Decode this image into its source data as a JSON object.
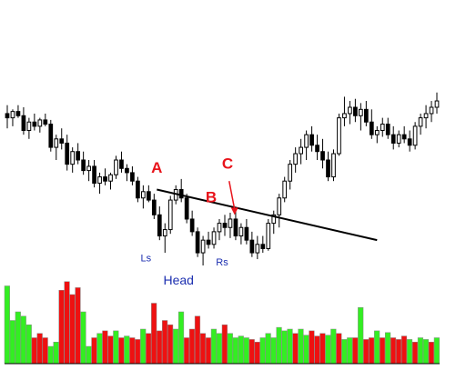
{
  "chart_data": {
    "type": "candlestick",
    "title": "",
    "xlabel": "",
    "ylabel": "",
    "candle_count": 80,
    "price_ylim": [
      0,
      100
    ],
    "volume_ylim": [
      0,
      100
    ],
    "candles": [
      [
        72,
        76,
        65,
        70
      ],
      [
        70,
        74,
        66,
        73
      ],
      [
        73,
        76,
        70,
        71
      ],
      [
        71,
        75,
        62,
        64
      ],
      [
        64,
        70,
        60,
        68
      ],
      [
        68,
        72,
        64,
        66
      ],
      [
        66,
        70,
        63,
        69
      ],
      [
        69,
        72,
        66,
        67
      ],
      [
        67,
        69,
        54,
        56
      ],
      [
        56,
        62,
        50,
        60
      ],
      [
        60,
        65,
        55,
        58
      ],
      [
        58,
        62,
        45,
        48
      ],
      [
        48,
        56,
        44,
        54
      ],
      [
        54,
        58,
        48,
        50
      ],
      [
        50,
        54,
        43,
        45
      ],
      [
        45,
        50,
        40,
        47
      ],
      [
        47,
        50,
        37,
        39
      ],
      [
        39,
        44,
        34,
        42
      ],
      [
        42,
        46,
        38,
        40
      ],
      [
        40,
        44,
        36,
        43
      ],
      [
        43,
        52,
        41,
        50
      ],
      [
        50,
        54,
        44,
        46
      ],
      [
        46,
        48,
        40,
        44
      ],
      [
        44,
        47,
        38,
        40
      ],
      [
        40,
        42,
        30,
        32
      ],
      [
        32,
        38,
        27,
        35
      ],
      [
        35,
        38,
        30,
        31
      ],
      [
        31,
        34,
        22,
        24
      ],
      [
        24,
        28,
        12,
        14
      ],
      [
        14,
        20,
        6,
        17
      ],
      [
        17,
        33,
        15,
        31
      ],
      [
        31,
        38,
        29,
        36
      ],
      [
        36,
        41,
        30,
        32
      ],
      [
        32,
        34,
        20,
        22
      ],
      [
        22,
        26,
        14,
        16
      ],
      [
        16,
        18,
        4,
        6
      ],
      [
        6,
        14,
        0,
        12
      ],
      [
        12,
        16,
        8,
        10
      ],
      [
        10,
        18,
        8,
        16
      ],
      [
        16,
        22,
        12,
        20
      ],
      [
        20,
        24,
        14,
        18
      ],
      [
        18,
        25,
        13,
        22
      ],
      [
        22,
        26,
        12,
        14
      ],
      [
        14,
        20,
        10,
        18
      ],
      [
        18,
        22,
        10,
        12
      ],
      [
        12,
        16,
        4,
        6
      ],
      [
        6,
        14,
        3,
        10
      ],
      [
        10,
        14,
        6,
        8
      ],
      [
        8,
        22,
        7,
        20
      ],
      [
        20,
        26,
        15,
        24
      ],
      [
        24,
        34,
        18,
        32
      ],
      [
        32,
        42,
        30,
        40
      ],
      [
        40,
        50,
        36,
        48
      ],
      [
        48,
        56,
        44,
        53
      ],
      [
        53,
        60,
        48,
        56
      ],
      [
        56,
        64,
        50,
        62
      ],
      [
        62,
        66,
        54,
        57
      ],
      [
        57,
        62,
        50,
        54
      ],
      [
        54,
        60,
        46,
        50
      ],
      [
        50,
        54,
        40,
        42
      ],
      [
        42,
        55,
        40,
        53
      ],
      [
        53,
        72,
        52,
        70
      ],
      [
        70,
        80,
        66,
        72
      ],
      [
        72,
        78,
        67,
        75
      ],
      [
        75,
        79,
        68,
        71
      ],
      [
        71,
        77,
        64,
        74
      ],
      [
        74,
        78,
        66,
        68
      ],
      [
        68,
        74,
        60,
        62
      ],
      [
        62,
        66,
        58,
        64
      ],
      [
        64,
        70,
        61,
        67
      ],
      [
        67,
        70,
        60,
        62
      ],
      [
        62,
        66,
        55,
        58
      ],
      [
        58,
        64,
        56,
        62
      ],
      [
        62,
        66,
        58,
        60
      ],
      [
        60,
        64,
        54,
        57
      ],
      [
        57,
        68,
        55,
        66
      ],
      [
        66,
        72,
        62,
        70
      ],
      [
        70,
        76,
        65,
        72
      ],
      [
        72,
        78,
        68,
        75
      ],
      [
        75,
        82,
        72,
        78
      ]
    ],
    "volume": [
      [
        90,
        "up"
      ],
      [
        50,
        "up"
      ],
      [
        60,
        "up"
      ],
      [
        55,
        "up"
      ],
      [
        45,
        "up"
      ],
      [
        30,
        "down"
      ],
      [
        35,
        "down"
      ],
      [
        30,
        "down"
      ],
      [
        20,
        "up"
      ],
      [
        25,
        "up"
      ],
      [
        85,
        "down"
      ],
      [
        95,
        "down"
      ],
      [
        80,
        "down"
      ],
      [
        88,
        "down"
      ],
      [
        60,
        "up"
      ],
      [
        20,
        "up"
      ],
      [
        30,
        "down"
      ],
      [
        35,
        "up"
      ],
      [
        38,
        "down"
      ],
      [
        32,
        "down"
      ],
      [
        38,
        "up"
      ],
      [
        30,
        "down"
      ],
      [
        32,
        "up"
      ],
      [
        30,
        "down"
      ],
      [
        28,
        "down"
      ],
      [
        40,
        "up"
      ],
      [
        35,
        "down"
      ],
      [
        70,
        "down"
      ],
      [
        38,
        "down"
      ],
      [
        50,
        "down"
      ],
      [
        45,
        "down"
      ],
      [
        40,
        "up"
      ],
      [
        60,
        "up"
      ],
      [
        30,
        "down"
      ],
      [
        40,
        "down"
      ],
      [
        55,
        "down"
      ],
      [
        35,
        "down"
      ],
      [
        30,
        "down"
      ],
      [
        40,
        "up"
      ],
      [
        35,
        "up"
      ],
      [
        45,
        "down"
      ],
      [
        35,
        "up"
      ],
      [
        30,
        "up"
      ],
      [
        32,
        "up"
      ],
      [
        30,
        "up"
      ],
      [
        28,
        "down"
      ],
      [
        25,
        "down"
      ],
      [
        30,
        "up"
      ],
      [
        35,
        "up"
      ],
      [
        30,
        "up"
      ],
      [
        42,
        "up"
      ],
      [
        38,
        "up"
      ],
      [
        40,
        "up"
      ],
      [
        35,
        "down"
      ],
      [
        40,
        "up"
      ],
      [
        33,
        "up"
      ],
      [
        38,
        "down"
      ],
      [
        32,
        "down"
      ],
      [
        35,
        "down"
      ],
      [
        33,
        "up"
      ],
      [
        40,
        "up"
      ],
      [
        35,
        "down"
      ],
      [
        28,
        "up"
      ],
      [
        30,
        "up"
      ],
      [
        30,
        "down"
      ],
      [
        65,
        "up"
      ],
      [
        28,
        "down"
      ],
      [
        30,
        "down"
      ],
      [
        38,
        "up"
      ],
      [
        30,
        "down"
      ],
      [
        36,
        "up"
      ],
      [
        30,
        "down"
      ],
      [
        28,
        "down"
      ],
      [
        32,
        "down"
      ],
      [
        28,
        "up"
      ],
      [
        25,
        "down"
      ],
      [
        30,
        "up"
      ],
      [
        28,
        "up"
      ],
      [
        25,
        "down"
      ],
      [
        30,
        "up"
      ]
    ],
    "trendline": {
      "from_candle": 28,
      "from_price": 36,
      "to_candle": 68,
      "to_price": 12
    },
    "annotations": [
      {
        "text": "A",
        "candle": 28,
        "price": 44,
        "style": "red"
      },
      {
        "text": "B",
        "candle": 38,
        "price": 30,
        "style": "red"
      },
      {
        "text": "C",
        "candle": 41,
        "price": 46,
        "style": "red"
      },
      {
        "text": "Ls",
        "candle": 26,
        "price": 2,
        "style": "blue"
      },
      {
        "text": "Head",
        "candle": 32,
        "price": -9,
        "style": "blue-lg"
      },
      {
        "text": "Rs",
        "candle": 40,
        "price": 0,
        "style": "blue"
      }
    ],
    "arrow": {
      "from_candle": 41,
      "from_price": 40,
      "to_candle": 42,
      "to_price": 24
    },
    "colors": {
      "up_volume": "#33ee22",
      "down_volume": "#ee1111",
      "candle_stroke": "#000000",
      "annotation_red": "#e8141b",
      "annotation_blue": "#1c2fb0"
    }
  }
}
